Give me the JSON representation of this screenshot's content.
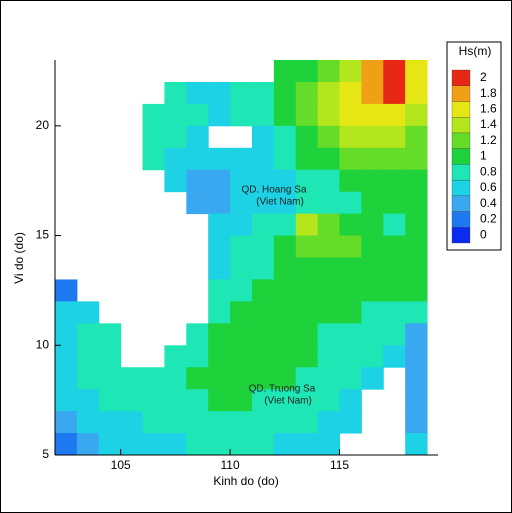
{
  "chart_data": {
    "type": "heatmap",
    "xlabel": "Kinh do (do)",
    "ylabel": "Vi do (do)",
    "xlim": [
      102,
      119.5
    ],
    "ylim": [
      5,
      23
    ],
    "xticks": [
      105,
      110,
      115
    ],
    "yticks": [
      5,
      10,
      15,
      20
    ],
    "x": [
      102.5,
      103.5,
      104.5,
      105.5,
      106.5,
      107.5,
      108.5,
      109.5,
      110.5,
      111.5,
      112.5,
      113.5,
      114.5,
      115.5,
      116.5,
      117.5,
      118.5
    ],
    "y": [
      22.5,
      21.5,
      20.5,
      19.5,
      18.5,
      17.5,
      16.5,
      15.5,
      14.5,
      13.5,
      12.5,
      11.5,
      10.5,
      9.5,
      8.5,
      7.5,
      6.5,
      5.5
    ],
    "z": [
      [
        null,
        null,
        null,
        null,
        null,
        null,
        null,
        null,
        null,
        null,
        1.0,
        1.1,
        1.3,
        1.5,
        1.8,
        2.0,
        1.7
      ],
      [
        null,
        null,
        null,
        null,
        null,
        0.8,
        0.7,
        0.7,
        0.8,
        0.9,
        1.1,
        1.3,
        1.4,
        1.7,
        1.9,
        2.0,
        1.6
      ],
      [
        null,
        null,
        null,
        null,
        0.9,
        0.9,
        0.8,
        0.7,
        0.8,
        0.9,
        1.0,
        1.2,
        1.4,
        1.6,
        1.7,
        1.7,
        1.5
      ],
      [
        null,
        null,
        null,
        null,
        0.9,
        0.9,
        0.7,
        null,
        null,
        0.7,
        0.9,
        1.1,
        1.3,
        1.4,
        1.5,
        1.4,
        1.3
      ],
      [
        null,
        null,
        null,
        null,
        0.8,
        0.7,
        0.6,
        0.7,
        0.7,
        0.7,
        0.8,
        1.0,
        1.1,
        1.2,
        1.3,
        1.2,
        1.2
      ],
      [
        null,
        null,
        null,
        null,
        null,
        0.6,
        0.5,
        0.5,
        0.6,
        0.6,
        0.7,
        0.8,
        0.9,
        1.0,
        1.1,
        1.1,
        1.1
      ],
      [
        null,
        null,
        null,
        null,
        null,
        null,
        0.5,
        0.5,
        0.6,
        0.6,
        0.7,
        0.8,
        0.9,
        0.9,
        1.0,
        1.0,
        1.1
      ],
      [
        null,
        null,
        null,
        null,
        null,
        null,
        null,
        0.6,
        0.7,
        0.8,
        0.9,
        1.5,
        1.3,
        1.1,
        1.0,
        0.9,
        1.0
      ],
      [
        null,
        null,
        null,
        null,
        null,
        null,
        null,
        0.7,
        0.8,
        0.9,
        1.0,
        1.2,
        1.2,
        1.2,
        1.1,
        1.0,
        1.0
      ],
      [
        null,
        null,
        null,
        null,
        null,
        null,
        null,
        0.7,
        0.8,
        0.9,
        1.0,
        1.0,
        1.0,
        1.1,
        1.1,
        1.0,
        1.0
      ],
      [
        0.3,
        null,
        null,
        null,
        null,
        null,
        null,
        0.8,
        0.9,
        1.0,
        1.0,
        1.0,
        1.0,
        1.0,
        1.0,
        1.0,
        1.0
      ],
      [
        0.6,
        0.7,
        null,
        null,
        null,
        null,
        null,
        0.9,
        1.0,
        1.1,
        1.1,
        1.0,
        1.0,
        1.0,
        0.9,
        0.9,
        0.9
      ],
      [
        0.7,
        0.8,
        0.9,
        null,
        null,
        null,
        0.9,
        1.0,
        1.1,
        1.1,
        1.1,
        1.0,
        0.9,
        0.9,
        0.9,
        0.8,
        0.5
      ],
      [
        0.7,
        0.8,
        0.9,
        null,
        null,
        0.8,
        0.9,
        1.0,
        1.1,
        1.1,
        1.1,
        1.0,
        0.9,
        0.8,
        0.8,
        0.6,
        0.4
      ],
      [
        0.7,
        0.8,
        0.8,
        0.9,
        0.9,
        0.9,
        1.0,
        1.0,
        1.0,
        1.0,
        1.0,
        0.9,
        0.9,
        0.8,
        0.7,
        null,
        0.4
      ],
      [
        0.6,
        0.7,
        0.8,
        0.8,
        0.9,
        0.9,
        0.9,
        1.0,
        1.0,
        0.9,
        0.9,
        0.9,
        0.8,
        0.7,
        null,
        null,
        0.5
      ],
      [
        0.5,
        0.6,
        0.7,
        0.7,
        0.8,
        0.8,
        0.9,
        0.9,
        0.9,
        0.9,
        0.8,
        0.8,
        0.7,
        0.6,
        null,
        null,
        0.5
      ],
      [
        0.3,
        0.5,
        0.6,
        0.6,
        0.7,
        0.7,
        0.8,
        0.8,
        0.8,
        0.8,
        0.7,
        0.6,
        0.6,
        null,
        null,
        null,
        0.6
      ]
    ],
    "colorbar": {
      "title": "Hs(m)",
      "levels": [
        0,
        0.2,
        0.4,
        0.6,
        0.8,
        1,
        1.2,
        1.4,
        1.6,
        1.8,
        2
      ],
      "colors": [
        "#0a2cf0",
        "#1e78f0",
        "#3aa8f0",
        "#1ed2e6",
        "#1ee6b4",
        "#1ed23c",
        "#64dc28",
        "#b4e61e",
        "#e6e614",
        "#f0a014",
        "#e62814"
      ]
    },
    "annotations": [
      "QD. Hoang Sa",
      "(Viet Nam)",
      "QD. Truong Sa",
      "(Viet Nam)"
    ]
  }
}
